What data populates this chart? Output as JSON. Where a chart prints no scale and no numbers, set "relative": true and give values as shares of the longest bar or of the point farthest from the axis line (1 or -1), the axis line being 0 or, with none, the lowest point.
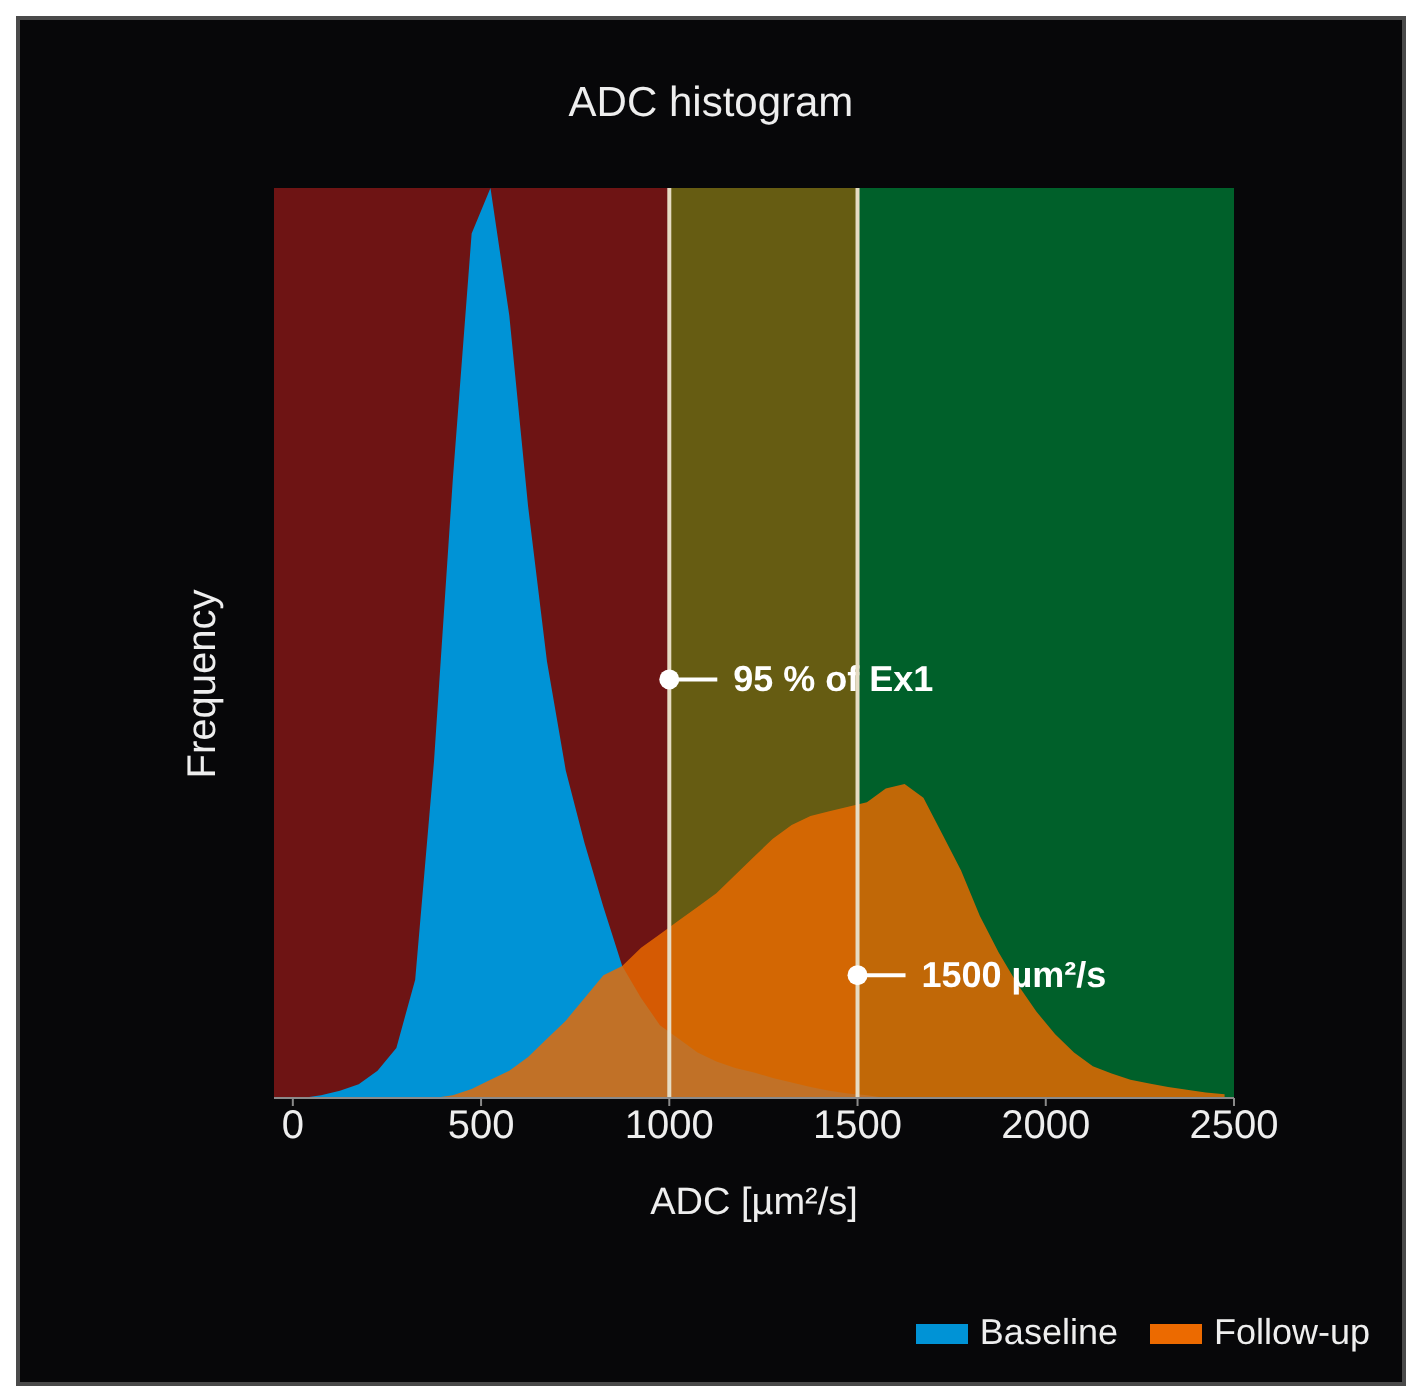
{
  "chart_data": {
    "type": "area",
    "title": "ADC histogram",
    "xlabel": "ADC [µm²/s]",
    "ylabel": "Frequency",
    "relative": true,
    "x": [
      -25,
      25,
      75,
      125,
      175,
      225,
      275,
      325,
      375,
      425,
      475,
      525,
      575,
      625,
      675,
      725,
      775,
      825,
      875,
      925,
      975,
      1025,
      1075,
      1125,
      1175,
      1225,
      1275,
      1325,
      1375,
      1425,
      1475,
      1525,
      1575,
      1625,
      1675,
      1725,
      1775,
      1825,
      1875,
      1925,
      1975,
      2025,
      2075,
      2125,
      2175,
      2225,
      2275,
      2325,
      2375,
      2425,
      2475
    ],
    "series": [
      {
        "name": "Baseline",
        "color": "#0093d6",
        "values": [
          0,
          0,
          0.003,
          0.008,
          0.015,
          0.03,
          0.055,
          0.13,
          0.37,
          0.68,
          0.95,
          1,
          0.86,
          0.65,
          0.48,
          0.36,
          0.28,
          0.21,
          0.145,
          0.11,
          0.08,
          0.065,
          0.05,
          0.04,
          0.033,
          0.028,
          0.022,
          0.017,
          0.012,
          0.008,
          0.005,
          0.003,
          0,
          0,
          0,
          0,
          0,
          0,
          0,
          0,
          0,
          0,
          0,
          0,
          0,
          0,
          0,
          0,
          0,
          0,
          0
        ]
      },
      {
        "name": "Follow-up",
        "color": "#ec6a00",
        "values": [
          0,
          0,
          0,
          0,
          0,
          0,
          0,
          0,
          0,
          0.003,
          0.01,
          0.02,
          0.03,
          0.045,
          0.065,
          0.085,
          0.11,
          0.135,
          0.145,
          0.165,
          0.18,
          0.195,
          0.21,
          0.225,
          0.245,
          0.265,
          0.285,
          0.3,
          0.31,
          0.315,
          0.32,
          0.325,
          0.34,
          0.345,
          0.33,
          0.29,
          0.25,
          0.2,
          0.16,
          0.125,
          0.095,
          0.07,
          0.05,
          0.035,
          0.027,
          0.02,
          0.016,
          0.012,
          0.009,
          0.006,
          0.004
        ]
      }
    ],
    "xlim": [
      -50,
      2500
    ],
    "xticks": [
      0,
      500,
      1000,
      1500,
      2000,
      2500
    ],
    "bands": [
      {
        "axis": "x",
        "from": -50,
        "to": 1000,
        "color": "#6e1414"
      },
      {
        "axis": "x",
        "from": 1000,
        "to": 1500,
        "color": "#665c12"
      },
      {
        "axis": "x",
        "from": 1500,
        "to": 2500,
        "color": "#00602a"
      }
    ],
    "ref_lines": [
      {
        "axis": "x",
        "value": 1000,
        "label": "95 % of Ex1",
        "color": "#e6dcc4"
      },
      {
        "axis": "x",
        "value": 1500,
        "label": "1500 µm²/s",
        "color": "#e6dcc4"
      }
    ],
    "grid": false,
    "legend": "bottom right"
  }
}
